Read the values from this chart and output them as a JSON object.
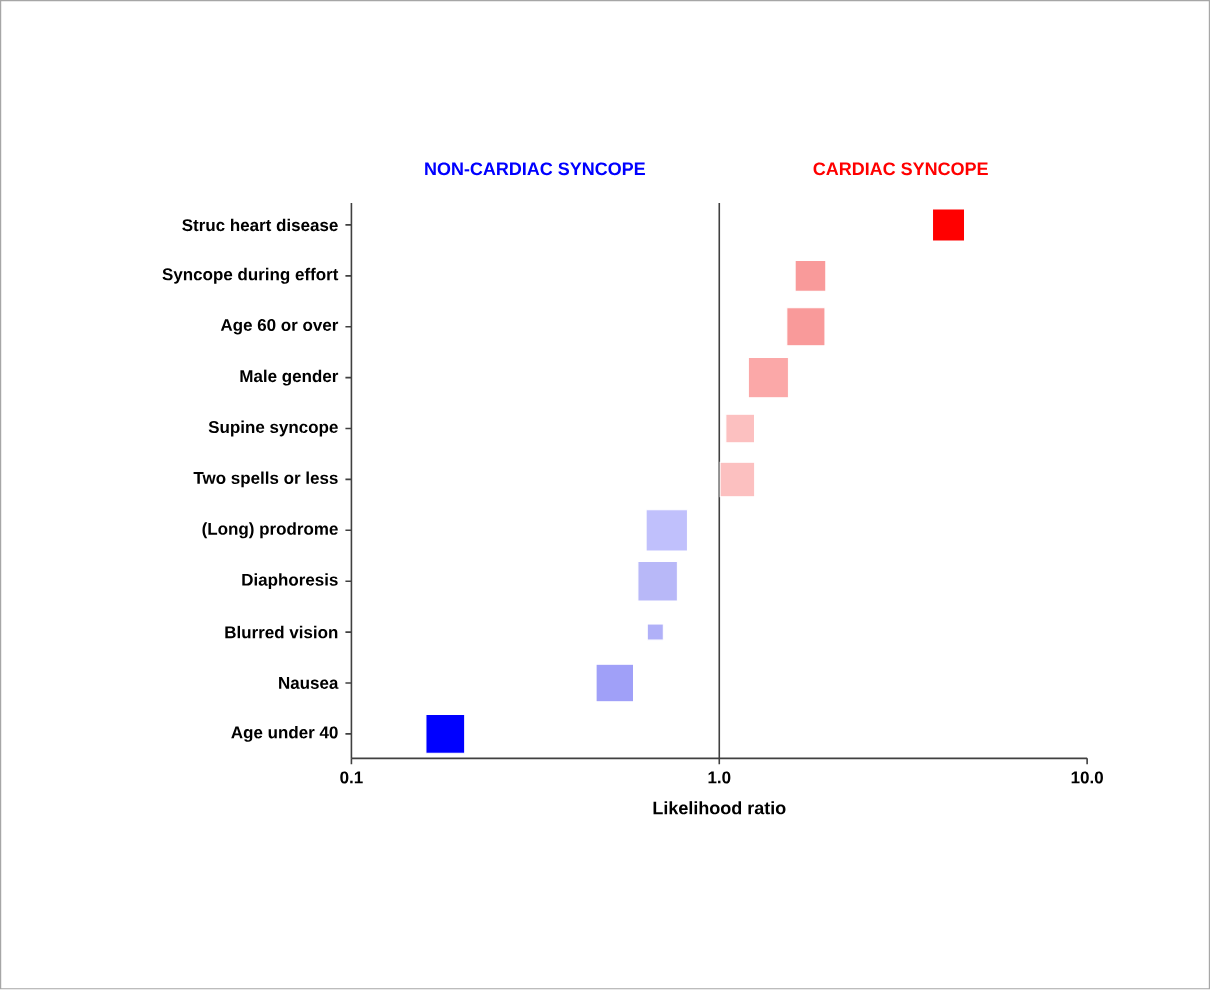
{
  "chart_data": {
    "type": "bubble",
    "marker": "square",
    "log": "x",
    "orientation": "horizontal",
    "xlabel": "Likelihood ratio",
    "categories": [
      "Struc heart disease",
      "Syncope during effort",
      "Age 60 or over",
      "Male gender",
      "Supine syncope",
      "Two spells or less",
      "(Long) prodrome",
      "Diaphoresis",
      "Blurred vision",
      "Nausea",
      "Age under 40"
    ],
    "values": [
      4.2,
      1.77,
      1.72,
      1.36,
      1.14,
      1.12,
      0.72,
      0.68,
      0.67,
      0.52,
      0.18
    ],
    "sizes": [
      0.6,
      0.55,
      0.85,
      0.94,
      0.48,
      0.7,
      1,
      0.91,
      0.15,
      0.82,
      0.88
    ],
    "colors": [
      "#ff0000",
      "#f99a9a",
      "#f99a9a",
      "#fba8a8",
      "#fcc0c0",
      "#fcc0c0",
      "#c0c0fc",
      "#b8b8f8",
      "#b0b0f8",
      "#a0a0f8",
      "#0000ff"
    ],
    "xlim": [
      0.1,
      10
    ],
    "xticks": [
      0.1,
      {
        "value": 1,
        "label": "1.0"
      },
      {
        "value": 10,
        "label": "10.0"
      }
    ],
    "ref_lines": [
      {
        "axis": "x",
        "value": 1,
        "color": "#404040"
      }
    ],
    "annotations": [
      "NON-CARDIAC SYNCOPE",
      "CARDIAC SYNCOPE"
    ]
  }
}
